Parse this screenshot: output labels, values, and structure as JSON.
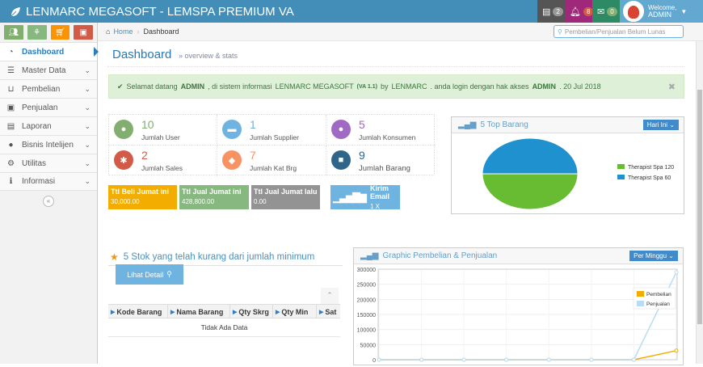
{
  "app": {
    "title": "LENMARC MEGASOFT - LEMSPA PREMIUM VA"
  },
  "topnav": {
    "tasks_count": "2",
    "notif_count": "8",
    "messages_count": "0",
    "welcome": "Welcome,",
    "user": "ADMIN"
  },
  "sidebar": {
    "items": [
      {
        "label": "Dashboard",
        "icon": "tachometer-icon"
      },
      {
        "label": "Master Data",
        "icon": "database-icon"
      },
      {
        "label": "Pembelian",
        "icon": "cart-icon"
      },
      {
        "label": "Penjualan",
        "icon": "money-icon"
      },
      {
        "label": "Laporan",
        "icon": "file-icon"
      },
      {
        "label": "Bisnis Intelijen",
        "icon": "users-icon"
      },
      {
        "label": "Utilitas",
        "icon": "cogs-icon"
      },
      {
        "label": "Informasi",
        "icon": "info-icon"
      }
    ]
  },
  "breadcrumb": {
    "home": "Home",
    "current": "Dashboard"
  },
  "search": {
    "placeholder": "Pembelian/Penjualan Belum Lunas"
  },
  "page": {
    "title": "Dashboard",
    "subtitle": "overview & stats"
  },
  "alert": {
    "pre": "Selamat datang",
    "user": "ADMIN",
    "mid": ", di sistem informasi",
    "app": "LENMARC MEGASOFT",
    "version": "(VA 1.1)",
    "by": "by",
    "company": "LENMARC",
    "rest": ". anda login dengan hak akses",
    "role": "ADMIN",
    "date": ". 20 Jul 2018"
  },
  "stats": [
    {
      "value": "10",
      "label": "Jumlah User",
      "color": "#82af6f"
    },
    {
      "value": "1",
      "label": "Jumlah Supplier",
      "color": "#6fb3e0"
    },
    {
      "value": "5",
      "label": "Jumlah Konsumen",
      "color": "#b74635"
    },
    {
      "value": "2",
      "label": "Jumlah Sales",
      "color": "#d15b47"
    },
    {
      "value": "7",
      "label": "Jumlah Kat Brg",
      "color": "#f79263"
    },
    {
      "value": "9",
      "label": "Jumlah Barang",
      "color": "#428bca"
    }
  ],
  "tiles": [
    {
      "title": "Ttl Beli Jumat ini",
      "value": "30,000.00",
      "color": "#f2ad00"
    },
    {
      "title": "Ttl Jual Jumat ini",
      "value": "428,800.00",
      "color": "#87b87f"
    },
    {
      "title": "Ttl Jual Jumat lalu",
      "value": "0.00",
      "color": "#939393"
    },
    {
      "title": "Kirim Email",
      "value": "1 X",
      "color": "#6fb3e0"
    }
  ],
  "top_barang": {
    "title": "5 Top Barang",
    "dropdown": "Hari Ini",
    "chart_data": {
      "type": "pie",
      "labels": [
        "Therapist Spa 120",
        "Therapist Spa 60"
      ],
      "values": [
        50,
        50
      ],
      "colors": [
        "#68bc31",
        "#2091cf"
      ],
      "legend": "right"
    }
  },
  "stok": {
    "title": "5 Stok yang telah kurang dari jumlah minimum",
    "button": "Lihat Detail",
    "columns": [
      "Kode Barang",
      "Nama Barang",
      "Qty Skrg",
      "Qty Min",
      "Sat"
    ],
    "empty": "Tidak Ada Data"
  },
  "graph": {
    "title": "Graphic Pembelian & Penjualan",
    "dropdown": "Per Minggu",
    "chart_data": {
      "type": "line",
      "ylim": [
        0,
        300000
      ],
      "yticks": [
        "300000",
        "250000",
        "200000",
        "150000",
        "100000",
        "50000",
        "0"
      ],
      "series": [
        {
          "name": "Pembelian",
          "color": "#f2ad00",
          "values": [
            0,
            0,
            0,
            0,
            0,
            0,
            0,
            30000
          ]
        },
        {
          "name": "Penjualan",
          "color": "#b9dcf5",
          "values": [
            0,
            0,
            0,
            0,
            0,
            0,
            0,
            290000
          ]
        }
      ],
      "legend": "top-right",
      "grid": true
    }
  }
}
